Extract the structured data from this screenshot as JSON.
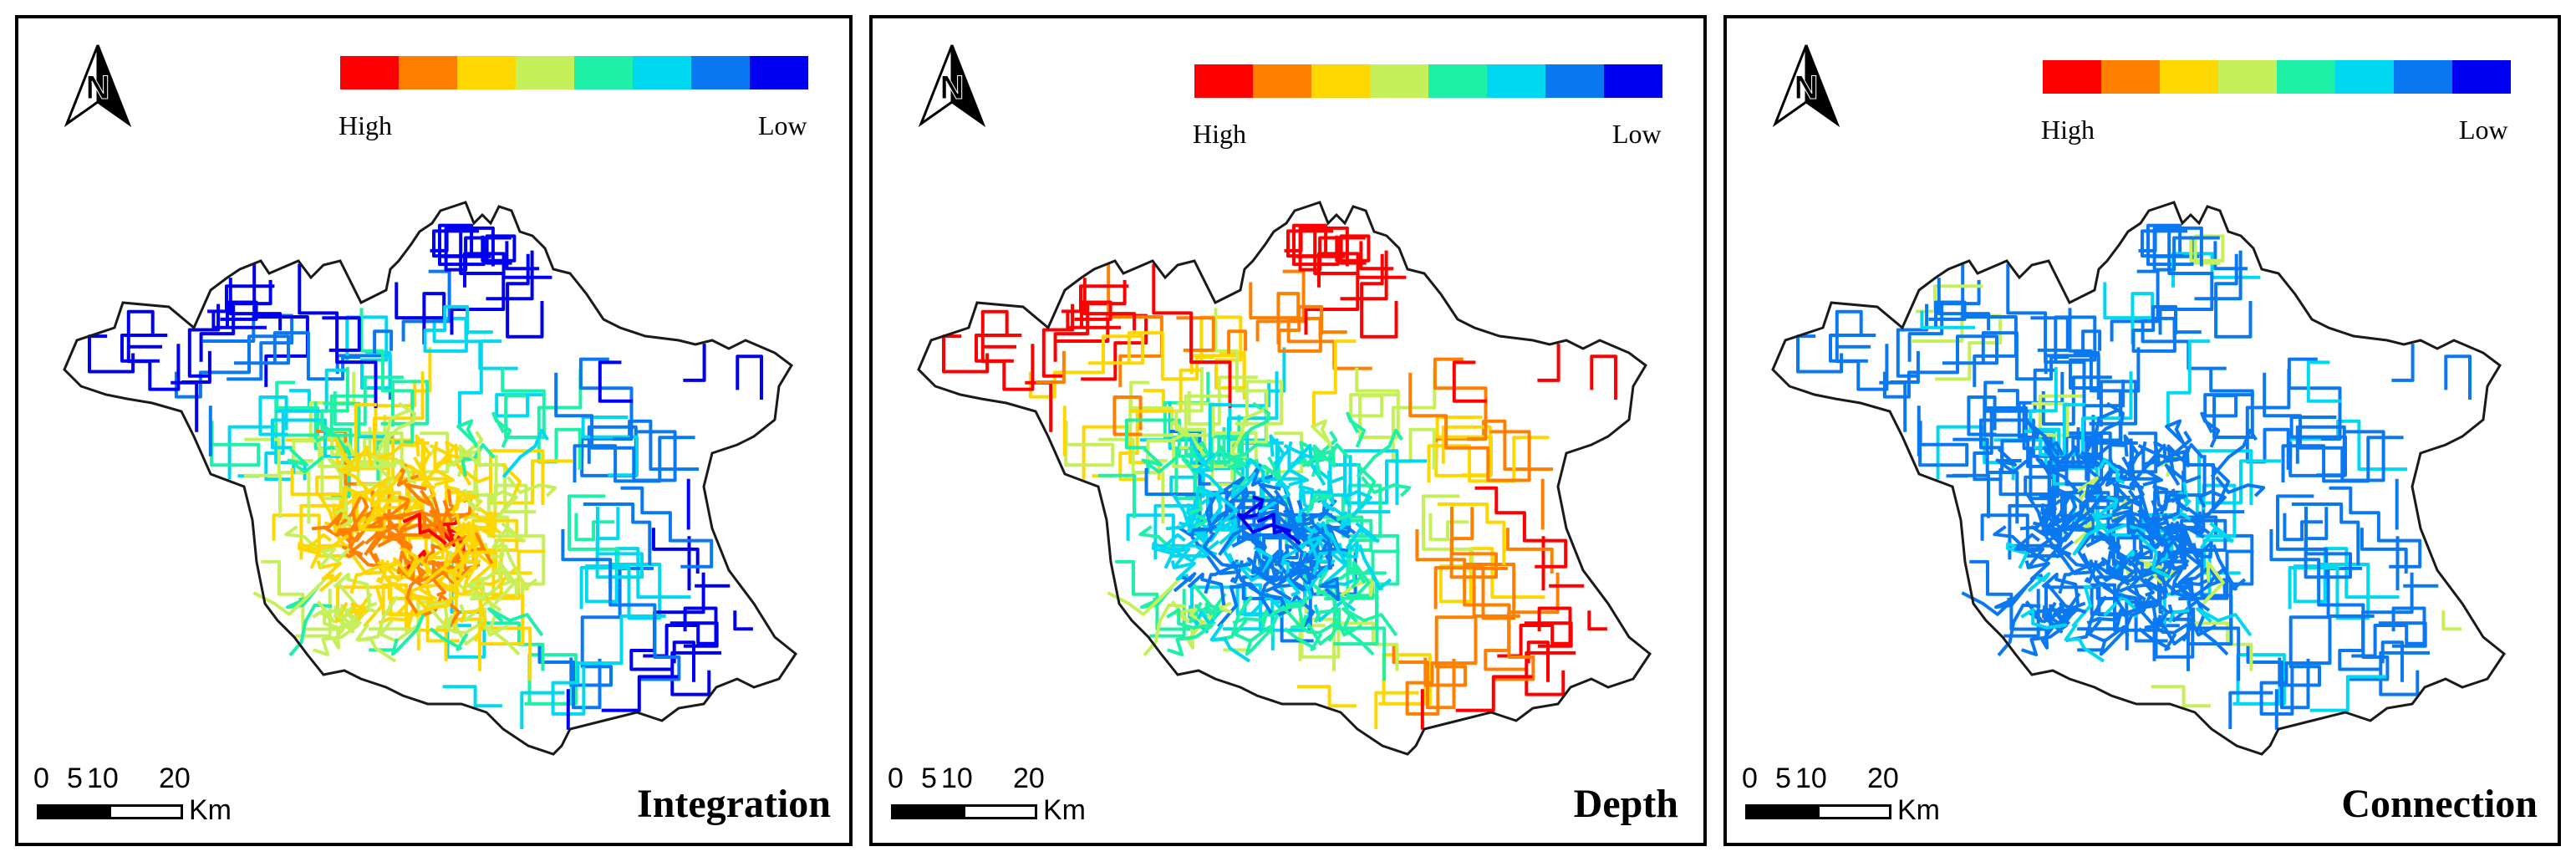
{
  "legend_colors": [
    "#ff0000",
    "#ff8000",
    "#ffd700",
    "#c6f05a",
    "#1ef0a8",
    "#00d7f0",
    "#0a78f0",
    "#0000f0"
  ],
  "legend": {
    "high_label": "High",
    "low_label": "Low"
  },
  "scale": {
    "ticks": [
      "0",
      "5",
      "10",
      "20"
    ],
    "unit": "Km"
  },
  "north_icon": "north-arrow-icon",
  "panels": [
    {
      "title": "Integration",
      "color_scheme": "center-high"
    },
    {
      "title": "Depth",
      "color_scheme": "center-low"
    },
    {
      "title": "Connection",
      "color_scheme": "mostly-low"
    }
  ]
}
